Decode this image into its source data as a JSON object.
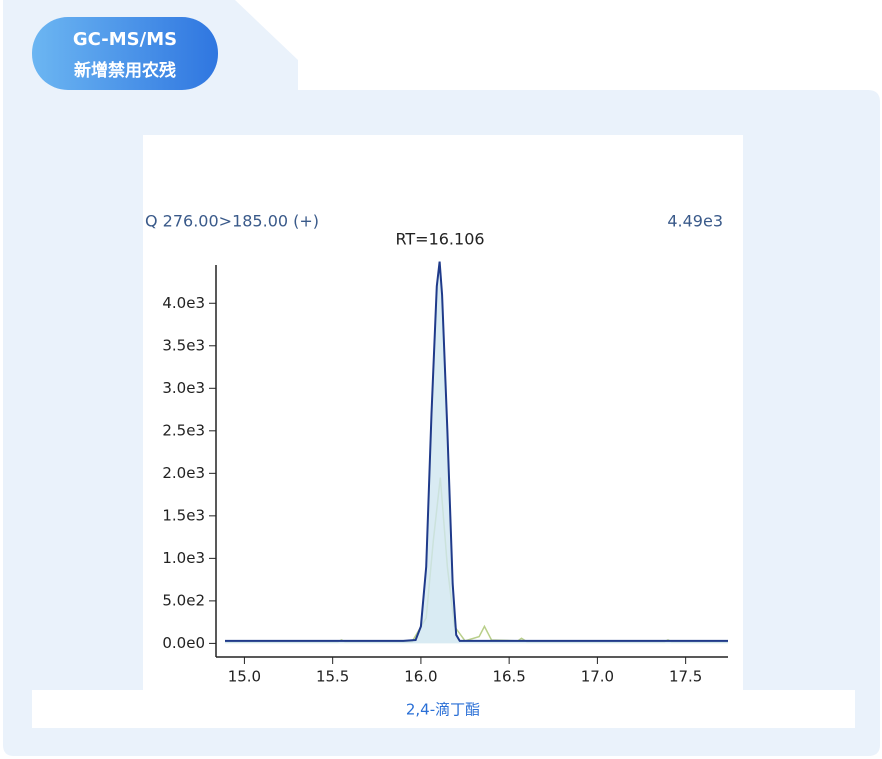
{
  "badge": {
    "line1": "GC-MS/MS",
    "line2": "新增禁用农残"
  },
  "caption": "2,4-滴丁酯",
  "chart_data": {
    "type": "line",
    "title": "Q 276.00>185.00 (+)",
    "intensity_label": "4.49e3",
    "annotation": "RT=16.106",
    "xlim": [
      14.89,
      17.74
    ],
    "ylim": [
      -160,
      4450
    ],
    "xticks": [
      {
        "value": 15,
        "label": "15.0"
      },
      {
        "value": 15.5,
        "label": "15.5"
      },
      {
        "value": 16,
        "label": "16.0"
      },
      {
        "value": 16.5,
        "label": "16.5"
      },
      {
        "value": 17,
        "label": "17.0"
      },
      {
        "value": 17.5,
        "label": "17.5"
      }
    ],
    "yticks": [
      {
        "value": 0,
        "label": "0.0e0"
      },
      {
        "value": 500,
        "label": "5.0e2"
      },
      {
        "value": 1000,
        "label": "1.0e3"
      },
      {
        "value": 1500,
        "label": "1.5e3"
      },
      {
        "value": 2000,
        "label": "2.0e3"
      },
      {
        "value": 2500,
        "label": "2.5e3"
      },
      {
        "value": 3000,
        "label": "3.0e3"
      },
      {
        "value": 3500,
        "label": "3.5e3"
      },
      {
        "value": 4000,
        "label": "4.0e3"
      }
    ],
    "series": [
      {
        "color": "#1f3a8a",
        "fill": "#cfe6f0",
        "x": [
          14.89,
          15.9,
          15.97,
          16.0,
          16.03,
          16.06,
          16.09,
          16.106,
          16.12,
          16.15,
          16.18,
          16.2,
          16.22,
          17.74
        ],
        "values": [
          30,
          30,
          40,
          200,
          900,
          2700,
          4200,
          4490,
          4100,
          2500,
          700,
          100,
          30,
          30
        ]
      },
      {
        "color": "#b9cf8a",
        "x": [
          14.89,
          15.53,
          15.55,
          15.57,
          15.95,
          16.03,
          16.07,
          16.11,
          16.15,
          16.19,
          16.25,
          16.33,
          16.36,
          16.4,
          16.55,
          16.57,
          16.6,
          17.38,
          17.4,
          17.42,
          17.74
        ],
        "values": [
          20,
          20,
          40,
          20,
          20,
          300,
          1200,
          1950,
          900,
          200,
          30,
          80,
          200,
          40,
          30,
          60,
          20,
          20,
          40,
          20,
          20
        ]
      }
    ]
  }
}
